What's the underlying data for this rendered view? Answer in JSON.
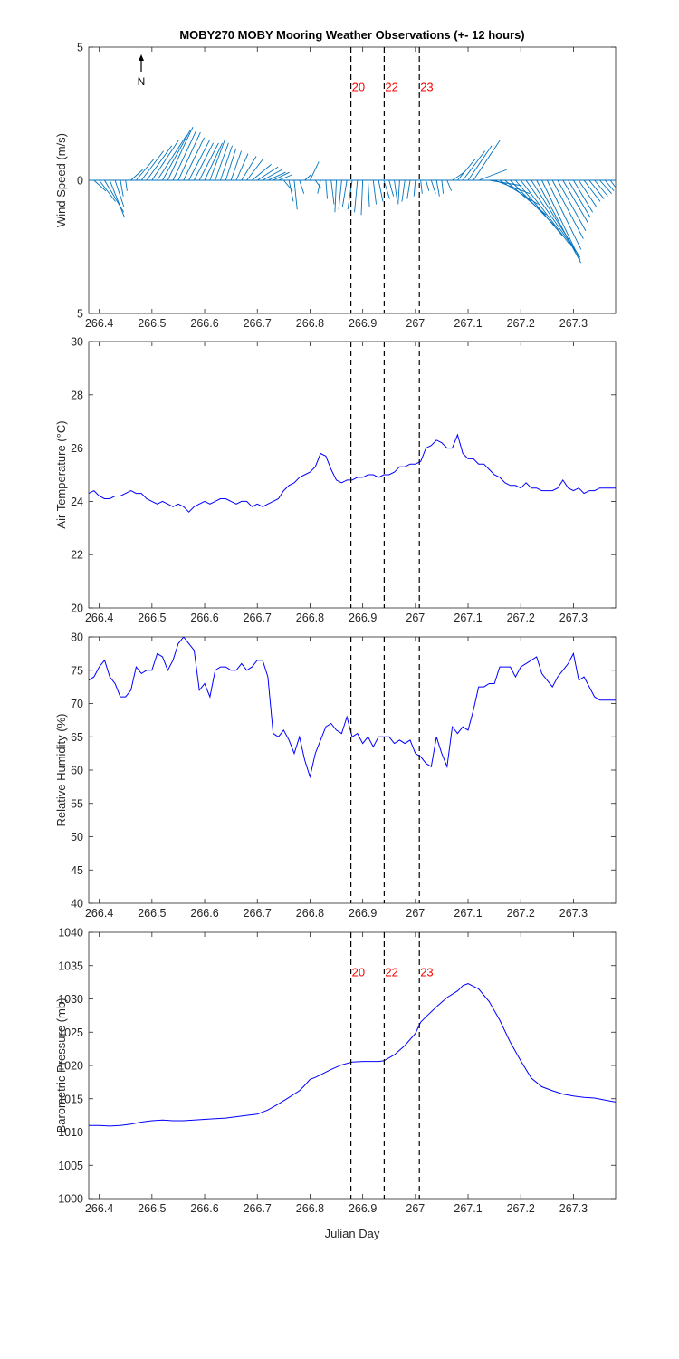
{
  "title": "MOBY270 MOBY Mooring Weather Observations (+- 12 hours)",
  "north_label": "N",
  "xlabel": "Julian Day",
  "colors": {
    "line": "#0000ff",
    "wind": "#0072bd",
    "marker": "#ff0000",
    "axis": "#262626"
  },
  "x_axis": {
    "xlim": [
      266.38,
      267.38
    ],
    "ticks": [
      266.4,
      266.5,
      266.6,
      266.7,
      266.8,
      266.9,
      267.0,
      267.1,
      267.2,
      267.3
    ],
    "tick_labels": [
      "266.4",
      "266.5",
      "266.6",
      "266.7",
      "266.8",
      "266.9",
      "267",
      "267.1",
      "267.2",
      "267.3"
    ]
  },
  "markers": [
    {
      "label": "20",
      "x": 266.8776
    },
    {
      "label": "22",
      "x": 266.9408
    },
    {
      "label": "23",
      "x": 267.0075
    }
  ],
  "chart_data": [
    {
      "type": "quiver",
      "name": "wind",
      "ylabel": "Wind Speed (m/s)",
      "ylim": [
        -5,
        5
      ],
      "yticks": [
        5,
        0,
        -5
      ],
      "ytick_labels": [
        "5",
        "0",
        "5"
      ],
      "grid": false,
      "show_marker_labels": true,
      "vectors": {
        "x": [
          266.39,
          266.4,
          266.41,
          266.42,
          266.43,
          266.44,
          266.45,
          266.46,
          266.47,
          266.48,
          266.49,
          266.5,
          266.51,
          266.52,
          266.53,
          266.54,
          266.55,
          266.56,
          266.57,
          266.58,
          266.59,
          266.6,
          266.61,
          266.62,
          266.63,
          266.64,
          266.65,
          266.66,
          266.67,
          266.68,
          266.69,
          266.7,
          266.71,
          266.72,
          266.73,
          266.74,
          266.75,
          266.76,
          266.77,
          266.78,
          266.79,
          266.8,
          266.81,
          266.82,
          266.83,
          266.84,
          266.85,
          266.86,
          266.87,
          266.88,
          266.89,
          266.9,
          266.91,
          266.92,
          266.93,
          266.94,
          266.95,
          266.96,
          266.97,
          266.98,
          266.99,
          267.0,
          267.01,
          267.02,
          267.03,
          267.04,
          267.05,
          267.06,
          267.07,
          267.08,
          267.09,
          267.1,
          267.11,
          267.12,
          267.13,
          267.14,
          267.15,
          267.16,
          267.17,
          267.18,
          267.19,
          267.2,
          267.21,
          267.22,
          267.23,
          267.24,
          267.25,
          267.26,
          267.27,
          267.28,
          267.29,
          267.3,
          267.31,
          267.32,
          267.33,
          267.34,
          267.35,
          267.36,
          267.37
        ],
        "u": [
          0.8,
          1.1,
          1.3,
          1.0,
          0.6,
          0.2,
          0.1,
          0.8,
          1.2,
          1.5,
          1.7,
          1.8,
          2.0,
          1.9,
          1.7,
          1.6,
          1.5,
          1.4,
          1.4,
          1.3,
          1.3,
          1.2,
          1.0,
          0.9,
          0.8,
          0.7,
          0.7,
          0.8,
          1.0,
          1.1,
          1.3,
          1.4,
          1.3,
          1.2,
          1.1,
          0.9,
          0.6,
          0.3,
          0.2,
          0.3,
          0.4,
          0.6,
          0.4,
          -0.2,
          0.1,
          0.2,
          -0.1,
          -0.2,
          -0.3,
          -0.3,
          -0.2,
          -0.1,
          0.1,
          0.2,
          0.3,
          0.4,
          0.3,
          0.2,
          -0.1,
          -0.2,
          -0.2,
          -0.1,
          0.1,
          0.2,
          0.3,
          0.2,
          0.1,
          0.3,
          0.8,
          1.2,
          1.5,
          1.6,
          1.8,
          1.9,
          2.1,
          2.2,
          2.4,
          2.6,
          2.8,
          3.0,
          3.2,
          3.3,
          3.4,
          3.3,
          3.0,
          2.6,
          2.3,
          2.1,
          1.9,
          1.7,
          1.5,
          1.3,
          1.2,
          1.1,
          1.0,
          0.9,
          0.8,
          0.6,
          0.4
        ],
        "v": [
          -0.4,
          -0.8,
          -1.2,
          -1.4,
          -1.0,
          -0.6,
          -0.4,
          0.4,
          0.8,
          1.1,
          1.3,
          1.5,
          1.7,
          1.9,
          2.0,
          1.9,
          1.8,
          1.6,
          1.5,
          1.4,
          1.4,
          1.4,
          1.5,
          1.4,
          1.3,
          1.2,
          1.1,
          1.0,
          0.9,
          0.8,
          0.6,
          0.5,
          0.4,
          0.3,
          0.3,
          0.2,
          -0.4,
          -0.8,
          -1.1,
          -0.5,
          0.2,
          0.7,
          -0.3,
          -0.5,
          -0.7,
          -0.9,
          -1.2,
          -1.1,
          -1.0,
          -1.1,
          -1.2,
          -1.3,
          -1.0,
          -0.9,
          -0.8,
          -0.7,
          -0.6,
          -0.8,
          -0.9,
          -0.8,
          -0.7,
          -0.6,
          -0.5,
          -0.4,
          -0.5,
          -0.6,
          -0.5,
          -0.4,
          0.3,
          0.8,
          1.1,
          1.3,
          1.5,
          0.4,
          0.0,
          -0.2,
          -0.5,
          -0.9,
          -1.3,
          -1.7,
          -2.1,
          -2.4,
          -2.7,
          -2.9,
          -3.1,
          -3.0,
          -2.6,
          -2.2,
          -1.9,
          -1.6,
          -1.4,
          -1.2,
          -1.0,
          -0.8,
          -0.7,
          -0.6,
          -0.5,
          -0.4,
          -0.3
        ]
      }
    },
    {
      "type": "line",
      "name": "air-temperature",
      "ylabel": "Air Temperature (°C)",
      "ylim": [
        20,
        30
      ],
      "yticks": [
        20,
        22,
        24,
        26,
        28,
        30
      ],
      "ytick_labels": [
        "20",
        "22",
        "24",
        "26",
        "28",
        "30"
      ],
      "grid": false,
      "show_marker_labels": false,
      "x": [
        266.38,
        266.39,
        266.4,
        266.41,
        266.42,
        266.43,
        266.44,
        266.45,
        266.46,
        266.47,
        266.48,
        266.49,
        266.5,
        266.51,
        266.52,
        266.53,
        266.54,
        266.55,
        266.56,
        266.57,
        266.58,
        266.59,
        266.6,
        266.61,
        266.62,
        266.63,
        266.64,
        266.65,
        266.66,
        266.67,
        266.68,
        266.69,
        266.7,
        266.71,
        266.72,
        266.73,
        266.74,
        266.75,
        266.76,
        266.77,
        266.78,
        266.79,
        266.8,
        266.81,
        266.82,
        266.83,
        266.84,
        266.85,
        266.86,
        266.87,
        266.88,
        266.89,
        266.9,
        266.91,
        266.92,
        266.93,
        266.94,
        266.95,
        266.96,
        266.97,
        266.98,
        266.99,
        267.0,
        267.01,
        267.02,
        267.03,
        267.04,
        267.05,
        267.06,
        267.07,
        267.08,
        267.09,
        267.1,
        267.11,
        267.12,
        267.13,
        267.14,
        267.15,
        267.16,
        267.17,
        267.18,
        267.19,
        267.2,
        267.21,
        267.22,
        267.23,
        267.24,
        267.25,
        267.26,
        267.27,
        267.28,
        267.29,
        267.3,
        267.31,
        267.32,
        267.33,
        267.34,
        267.35,
        267.36,
        267.37,
        267.38
      ],
      "y": [
        24.3,
        24.4,
        24.2,
        24.1,
        24.1,
        24.2,
        24.2,
        24.3,
        24.4,
        24.3,
        24.3,
        24.1,
        24.0,
        23.9,
        24.0,
        23.9,
        23.8,
        23.9,
        23.8,
        23.6,
        23.8,
        23.9,
        24.0,
        23.9,
        24.0,
        24.1,
        24.1,
        24.0,
        23.9,
        24.0,
        24.0,
        23.8,
        23.9,
        23.8,
        23.9,
        24.0,
        24.1,
        24.4,
        24.6,
        24.7,
        24.9,
        25.0,
        25.1,
        25.3,
        25.8,
        25.7,
        25.2,
        24.8,
        24.7,
        24.8,
        24.8,
        24.9,
        24.9,
        25.0,
        25.0,
        24.9,
        25.0,
        25.0,
        25.1,
        25.3,
        25.3,
        25.4,
        25.4,
        25.5,
        26.0,
        26.1,
        26.3,
        26.2,
        26.0,
        26.0,
        26.5,
        25.8,
        25.6,
        25.6,
        25.4,
        25.4,
        25.2,
        25.0,
        24.9,
        24.7,
        24.6,
        24.6,
        24.5,
        24.7,
        24.5,
        24.5,
        24.4,
        24.4,
        24.4,
        24.5,
        24.8,
        24.5,
        24.4,
        24.5,
        24.3,
        24.4,
        24.4,
        24.5,
        24.5,
        24.5,
        24.5
      ]
    },
    {
      "type": "line",
      "name": "relative-humidity",
      "ylabel": "Relative Humidity (%)",
      "ylim": [
        40,
        80
      ],
      "yticks": [
        40,
        45,
        50,
        55,
        60,
        65,
        70,
        75,
        80
      ],
      "ytick_labels": [
        "40",
        "45",
        "50",
        "55",
        "60",
        "65",
        "70",
        "75",
        "80"
      ],
      "grid": false,
      "show_marker_labels": false,
      "x": [
        266.38,
        266.39,
        266.4,
        266.41,
        266.42,
        266.43,
        266.44,
        266.45,
        266.46,
        266.47,
        266.48,
        266.49,
        266.5,
        266.51,
        266.52,
        266.53,
        266.54,
        266.55,
        266.56,
        266.57,
        266.58,
        266.59,
        266.6,
        266.61,
        266.62,
        266.63,
        266.64,
        266.65,
        266.66,
        266.67,
        266.68,
        266.69,
        266.7,
        266.71,
        266.72,
        266.73,
        266.74,
        266.75,
        266.76,
        266.77,
        266.78,
        266.79,
        266.8,
        266.81,
        266.82,
        266.83,
        266.84,
        266.85,
        266.86,
        266.87,
        266.88,
        266.89,
        266.9,
        266.91,
        266.92,
        266.93,
        266.94,
        266.95,
        266.96,
        266.97,
        266.98,
        266.99,
        267.0,
        267.01,
        267.02,
        267.03,
        267.04,
        267.05,
        267.06,
        267.07,
        267.08,
        267.09,
        267.1,
        267.11,
        267.12,
        267.13,
        267.14,
        267.15,
        267.16,
        267.17,
        267.18,
        267.19,
        267.2,
        267.21,
        267.22,
        267.23,
        267.24,
        267.25,
        267.26,
        267.27,
        267.28,
        267.29,
        267.3,
        267.31,
        267.32,
        267.33,
        267.34,
        267.35,
        267.36,
        267.37,
        267.38
      ],
      "y": [
        73.5,
        74.0,
        75.5,
        76.5,
        74.0,
        73.0,
        71.0,
        71.0,
        72.0,
        75.5,
        74.5,
        75.0,
        75.0,
        77.5,
        77.0,
        75.0,
        76.5,
        79.0,
        80.0,
        79.0,
        78.0,
        72.0,
        73.0,
        71.0,
        75.0,
        75.5,
        75.5,
        75.0,
        75.0,
        76.0,
        75.0,
        75.5,
        76.5,
        76.5,
        74.0,
        65.5,
        65.0,
        66.0,
        64.5,
        62.5,
        65.0,
        61.5,
        59.0,
        62.5,
        64.5,
        66.5,
        67.0,
        66.0,
        65.5,
        68.0,
        65.0,
        65.5,
        64.0,
        65.0,
        63.5,
        65.0,
        65.0,
        65.0,
        64.0,
        64.5,
        64.0,
        64.5,
        62.5,
        62.0,
        61.0,
        60.5,
        65.0,
        62.5,
        60.5,
        66.5,
        65.5,
        66.5,
        66.0,
        69.0,
        72.5,
        72.5,
        73.0,
        73.0,
        75.5,
        75.5,
        75.5,
        74.0,
        75.5,
        76.0,
        76.5,
        77.0,
        74.5,
        73.5,
        72.5,
        74.0,
        75.0,
        76.0,
        77.5,
        73.5,
        74.0,
        72.5,
        71.0,
        70.5,
        70.5,
        70.5,
        70.5
      ]
    },
    {
      "type": "line",
      "name": "barometric-pressure",
      "ylabel": "Barometric Pressure (mb)",
      "ylim": [
        1000,
        1040
      ],
      "yticks": [
        1000,
        1005,
        1010,
        1015,
        1020,
        1025,
        1030,
        1035,
        1040
      ],
      "ytick_labels": [
        "1000",
        "1005",
        "1010",
        "1015",
        "1020",
        "1025",
        "1030",
        "1035",
        "1040"
      ],
      "grid": false,
      "show_marker_labels": true,
      "x": [
        266.38,
        266.4,
        266.42,
        266.44,
        266.46,
        266.48,
        266.5,
        266.52,
        266.54,
        266.56,
        266.58,
        266.6,
        266.62,
        266.64,
        266.66,
        266.68,
        266.7,
        266.72,
        266.74,
        266.76,
        266.78,
        266.79,
        266.8,
        266.81,
        266.82,
        266.84,
        266.86,
        266.88,
        266.9,
        266.92,
        266.93,
        266.94,
        266.96,
        266.98,
        267.0,
        267.01,
        267.02,
        267.04,
        267.06,
        267.08,
        267.09,
        267.1,
        267.12,
        267.14,
        267.16,
        267.18,
        267.2,
        267.22,
        267.24,
        267.26,
        267.28,
        267.3,
        267.32,
        267.34,
        267.36,
        267.38
      ],
      "y": [
        1011.0,
        1011.0,
        1010.9,
        1011.0,
        1011.2,
        1011.5,
        1011.7,
        1011.8,
        1011.7,
        1011.7,
        1011.8,
        1011.9,
        1012.0,
        1012.1,
        1012.3,
        1012.5,
        1012.7,
        1013.3,
        1014.2,
        1015.2,
        1016.2,
        1017.0,
        1017.9,
        1018.2,
        1018.6,
        1019.4,
        1020.1,
        1020.5,
        1020.6,
        1020.6,
        1020.6,
        1020.7,
        1021.6,
        1023.0,
        1024.8,
        1026.5,
        1027.3,
        1028.8,
        1030.2,
        1031.2,
        1032.0,
        1032.3,
        1031.5,
        1029.6,
        1026.8,
        1023.5,
        1020.7,
        1018.1,
        1016.8,
        1016.2,
        1015.7,
        1015.4,
        1015.2,
        1015.1,
        1014.8,
        1014.5
      ]
    }
  ]
}
